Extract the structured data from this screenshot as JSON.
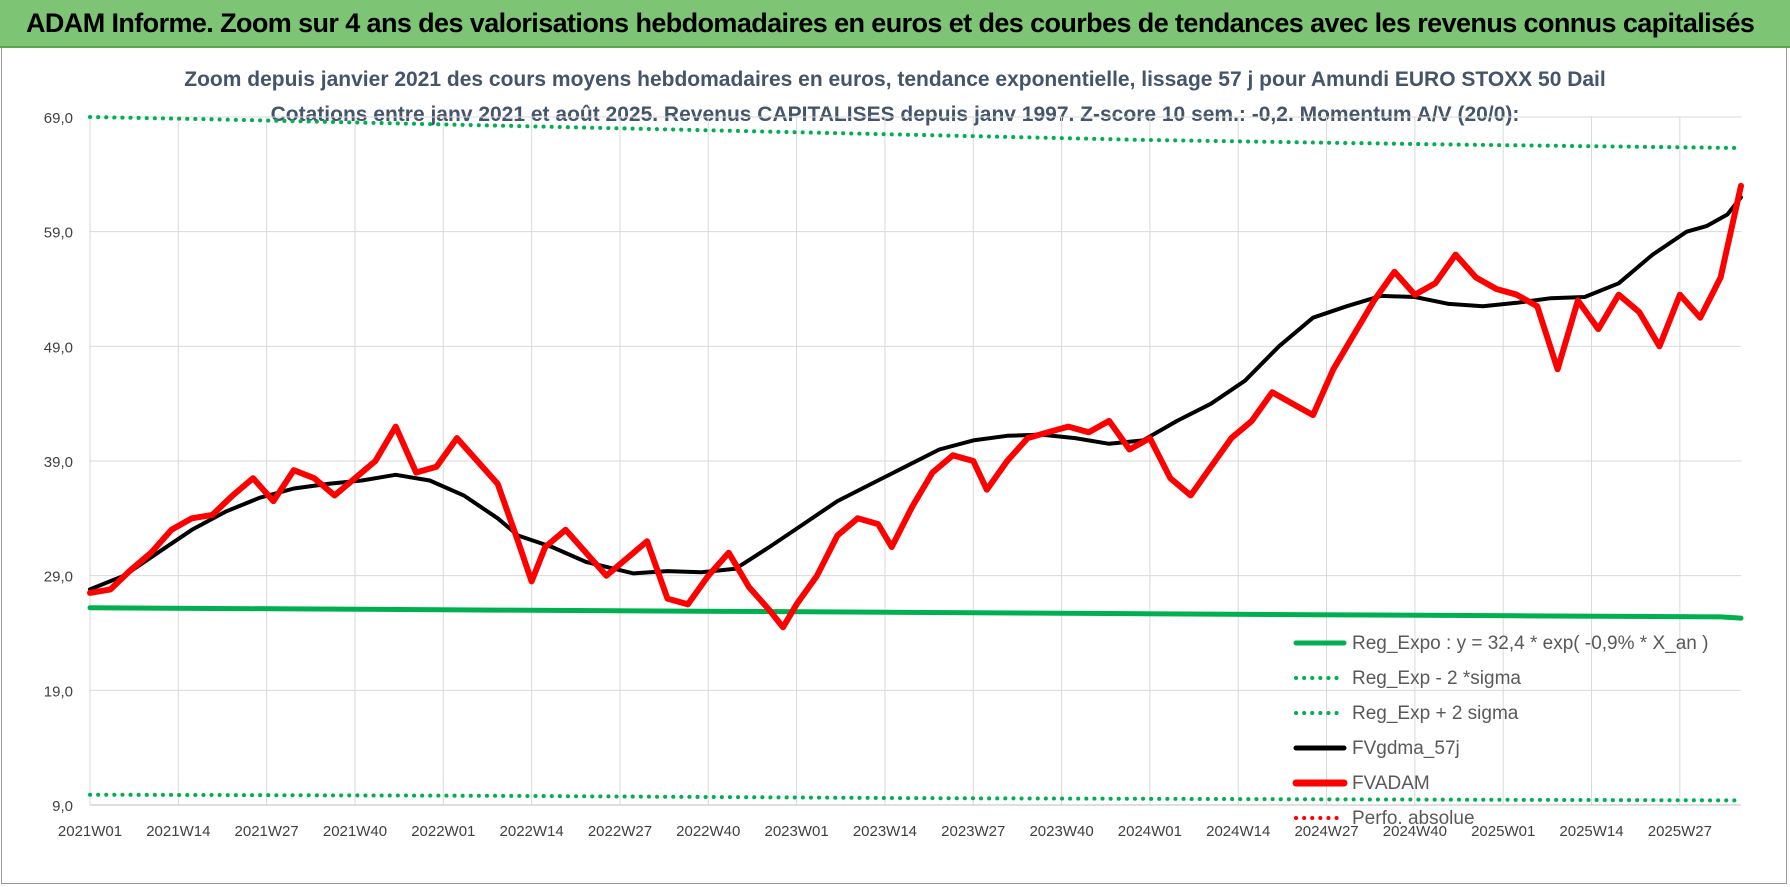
{
  "header": {
    "title": "ADAM Informe. Zoom sur 4 ans des valorisations hebdomadaires en euros et des courbes de tendances avec les revenus connus capitalisés"
  },
  "chart_data": {
    "type": "line",
    "title_line1": "Zoom depuis janvier 2021 des cours moyens hebdomadaires en euros, tendance exponentielle, lissage 57 j pour Amundi EURO STOXX 50 Dail",
    "title_line2": "Cotations entre janv 2021 et août 2025. Revenus CAPITALISES depuis janv 1997. Z-score 10 sem.: -0,2. Momentum A/V (20/0):",
    "ylim": [
      9,
      69
    ],
    "y_ticks": [
      "9,0",
      "19,0",
      "29,0",
      "39,0",
      "49,0",
      "59,0",
      "69,0"
    ],
    "x_ticks": [
      "2021W01",
      "2021W14",
      "2021W27",
      "2021W40",
      "2022W01",
      "2022W14",
      "2022W27",
      "2022W40",
      "2023W01",
      "2023W14",
      "2023W27",
      "2023W40",
      "2024W01",
      "2024W14",
      "2024W27",
      "2024W40",
      "2025W01",
      "2025W14",
      "2025W27"
    ],
    "grid": true,
    "legend_position": "bottom-right",
    "series": [
      {
        "name": "Reg_Expo : y = 32,4 * exp( -0,9% *  X_an )",
        "color": "#00b050",
        "style": "solid",
        "points": [
          [
            0,
            26.2
          ],
          [
            30,
            26.1
          ],
          [
            60,
            26.0
          ],
          [
            90,
            25.9
          ],
          [
            120,
            25.8
          ],
          [
            150,
            25.7
          ],
          [
            180,
            25.6
          ],
          [
            210,
            25.5
          ],
          [
            240,
            25.4
          ],
          [
            243,
            25.3
          ]
        ]
      },
      {
        "name": "Reg_Exp - 2 *sigma",
        "color": "#00b050",
        "style": "dotted",
        "points": [
          [
            0,
            9.9
          ],
          [
            60,
            9.8
          ],
          [
            120,
            9.6
          ],
          [
            180,
            9.5
          ],
          [
            243,
            9.4
          ]
        ]
      },
      {
        "name": "Reg_Exp + 2 sigma",
        "color": "#00b050",
        "style": "dotted",
        "points": [
          [
            0,
            69.0
          ],
          [
            18,
            68.8
          ],
          [
            155,
            67.0
          ],
          [
            200,
            66.6
          ],
          [
            243,
            66.3
          ]
        ]
      },
      {
        "name": "FVgdma_57j",
        "color": "#000000",
        "style": "solid",
        "points": [
          [
            0,
            27.8
          ],
          [
            5,
            29.0
          ],
          [
            10,
            31.0
          ],
          [
            15,
            33.0
          ],
          [
            20,
            34.6
          ],
          [
            25,
            35.8
          ],
          [
            30,
            36.6
          ],
          [
            35,
            37.0
          ],
          [
            40,
            37.3
          ],
          [
            45,
            37.8
          ],
          [
            50,
            37.3
          ],
          [
            55,
            36.0
          ],
          [
            60,
            34.0
          ],
          [
            63,
            32.5
          ],
          [
            68,
            31.5
          ],
          [
            73,
            30.2
          ],
          [
            80,
            29.2
          ],
          [
            85,
            29.4
          ],
          [
            90,
            29.3
          ],
          [
            95,
            29.6
          ],
          [
            100,
            31.5
          ],
          [
            105,
            33.5
          ],
          [
            110,
            35.5
          ],
          [
            115,
            37.0
          ],
          [
            120,
            38.5
          ],
          [
            125,
            40.0
          ],
          [
            130,
            40.8
          ],
          [
            135,
            41.2
          ],
          [
            140,
            41.3
          ],
          [
            145,
            41.0
          ],
          [
            150,
            40.5
          ],
          [
            155,
            40.8
          ],
          [
            160,
            42.5
          ],
          [
            165,
            44.0
          ],
          [
            170,
            46.0
          ],
          [
            175,
            49.0
          ],
          [
            180,
            51.5
          ],
          [
            185,
            52.5
          ],
          [
            190,
            53.4
          ],
          [
            195,
            53.3
          ],
          [
            200,
            52.7
          ],
          [
            205,
            52.5
          ],
          [
            210,
            52.8
          ],
          [
            215,
            53.2
          ],
          [
            220,
            53.3
          ],
          [
            225,
            54.5
          ],
          [
            230,
            57.0
          ],
          [
            235,
            59.0
          ],
          [
            238,
            59.5
          ],
          [
            241,
            60.5
          ],
          [
            243,
            62.0
          ]
        ]
      },
      {
        "name": "FVADAM",
        "color": "#ff0000",
        "style": "solid",
        "points": [
          [
            0,
            27.5
          ],
          [
            3,
            27.8
          ],
          [
            6,
            29.5
          ],
          [
            9,
            31.0
          ],
          [
            12,
            33.0
          ],
          [
            15,
            34.0
          ],
          [
            18,
            34.3
          ],
          [
            21,
            36.0
          ],
          [
            24,
            37.5
          ],
          [
            27,
            35.5
          ],
          [
            30,
            38.2
          ],
          [
            33,
            37.5
          ],
          [
            36,
            36.0
          ],
          [
            39,
            37.5
          ],
          [
            42,
            39.0
          ],
          [
            45,
            42.0
          ],
          [
            48,
            38.0
          ],
          [
            51,
            38.5
          ],
          [
            54,
            41.0
          ],
          [
            57,
            39.0
          ],
          [
            60,
            37.0
          ],
          [
            63,
            32.0
          ],
          [
            65,
            28.5
          ],
          [
            67,
            31.5
          ],
          [
            70,
            33.0
          ],
          [
            73,
            31.0
          ],
          [
            76,
            29.0
          ],
          [
            79,
            30.5
          ],
          [
            82,
            32.0
          ],
          [
            85,
            27.0
          ],
          [
            88,
            26.5
          ],
          [
            91,
            29.0
          ],
          [
            94,
            31.0
          ],
          [
            97,
            28.0
          ],
          [
            100,
            26.0
          ],
          [
            102,
            24.5
          ],
          [
            104,
            26.5
          ],
          [
            107,
            29.0
          ],
          [
            110,
            32.5
          ],
          [
            113,
            34.0
          ],
          [
            116,
            33.5
          ],
          [
            118,
            31.5
          ],
          [
            121,
            35.0
          ],
          [
            124,
            38.0
          ],
          [
            127,
            39.5
          ],
          [
            130,
            39.0
          ],
          [
            132,
            36.5
          ],
          [
            135,
            39.0
          ],
          [
            138,
            41.0
          ],
          [
            141,
            41.5
          ],
          [
            144,
            42.0
          ],
          [
            147,
            41.5
          ],
          [
            150,
            42.5
          ],
          [
            153,
            40.0
          ],
          [
            156,
            41.0
          ],
          [
            159,
            37.5
          ],
          [
            162,
            36.0
          ],
          [
            165,
            38.5
          ],
          [
            168,
            41.0
          ],
          [
            171,
            42.5
          ],
          [
            174,
            45.0
          ],
          [
            177,
            44.0
          ],
          [
            180,
            43.0
          ],
          [
            183,
            47.0
          ],
          [
            186,
            50.0
          ],
          [
            189,
            53.0
          ],
          [
            192,
            55.5
          ],
          [
            195,
            53.5
          ],
          [
            198,
            54.5
          ],
          [
            201,
            57.0
          ],
          [
            204,
            55.0
          ],
          [
            207,
            54.0
          ],
          [
            210,
            53.5
          ],
          [
            213,
            52.5
          ],
          [
            216,
            47.0
          ],
          [
            219,
            53.0
          ],
          [
            222,
            50.5
          ],
          [
            225,
            53.5
          ],
          [
            228,
            52.0
          ],
          [
            231,
            49.0
          ],
          [
            234,
            53.5
          ],
          [
            237,
            51.5
          ],
          [
            240,
            55.0
          ],
          [
            243,
            63.0
          ]
        ]
      },
      {
        "name": "Perfo. absolue",
        "color": "#ff0000",
        "style": "dotted",
        "points": []
      }
    ]
  }
}
